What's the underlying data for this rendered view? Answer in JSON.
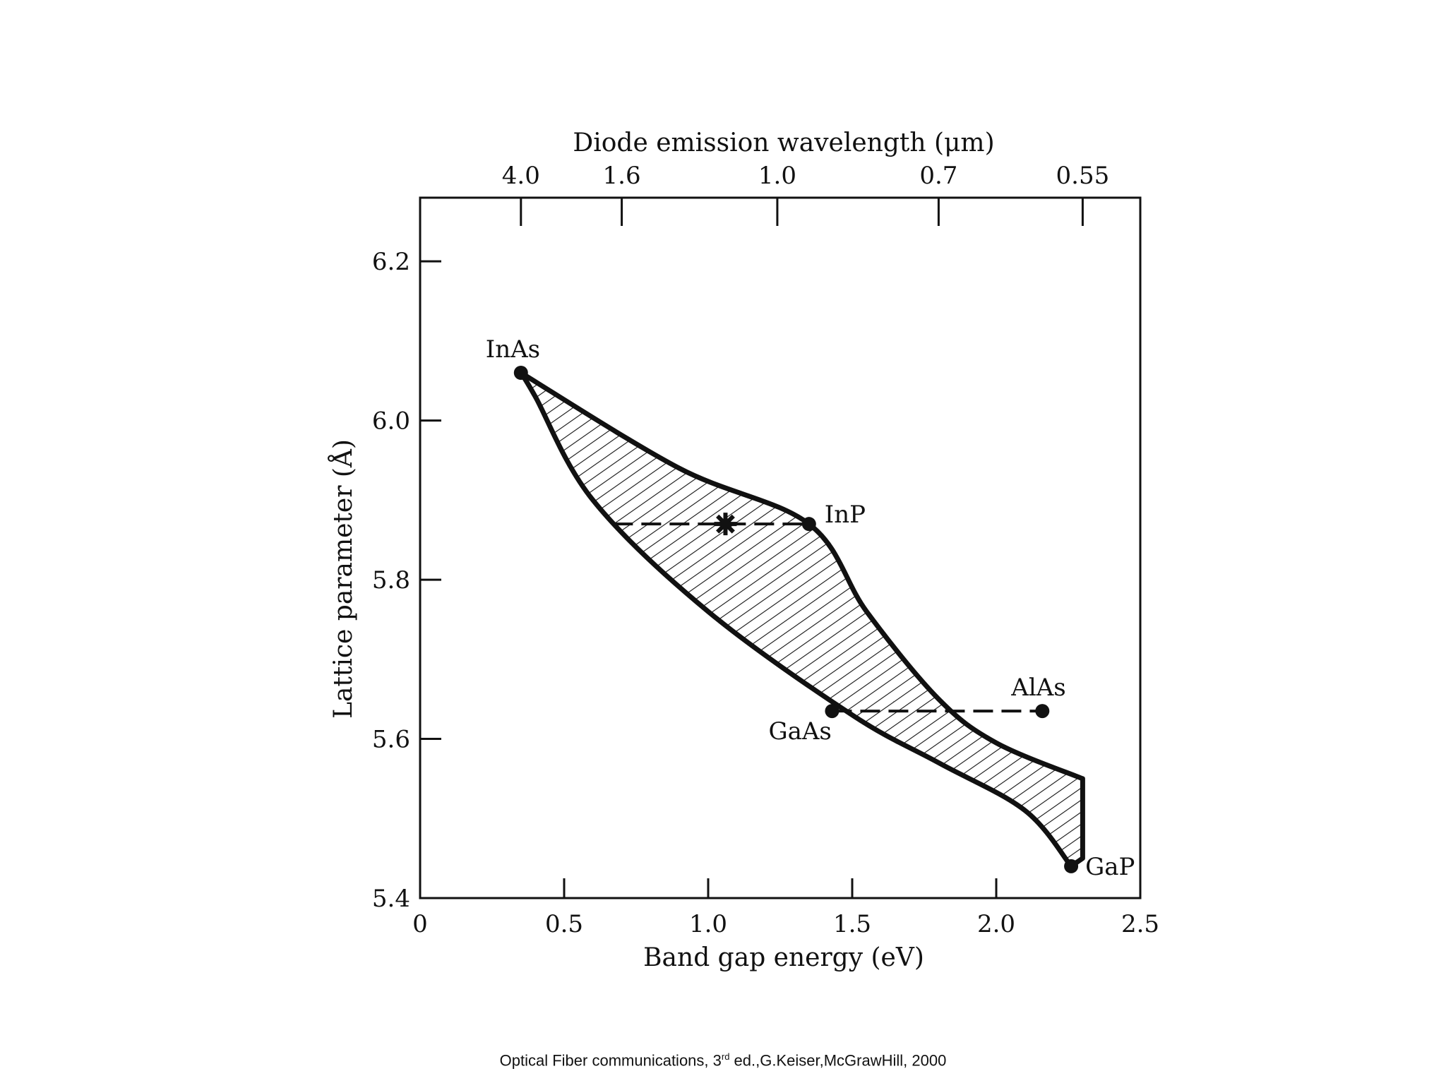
{
  "chart_data": {
    "type": "area",
    "top_axis": {
      "label": "Diode emission wavelength (μm)",
      "ticks": [
        {
          "label": "4.0",
          "energy": 0.35
        },
        {
          "label": "1.6",
          "energy": 0.7
        },
        {
          "label": "1.0",
          "energy": 1.24
        },
        {
          "label": "0.7",
          "energy": 1.8
        },
        {
          "label": "0.55",
          "energy": 2.3
        }
      ]
    },
    "xaxis": {
      "label": "Band gap energy (eV)",
      "range": [
        0,
        2.5
      ],
      "ticks": [
        {
          "value": 0,
          "label": "0"
        },
        {
          "value": 0.5,
          "label": "0.5"
        },
        {
          "value": 1.0,
          "label": "1.0"
        },
        {
          "value": 1.5,
          "label": "1.5"
        },
        {
          "value": 2.0,
          "label": "2.0"
        },
        {
          "value": 2.5,
          "label": "2.5"
        }
      ]
    },
    "yaxis": {
      "label": "Lattice parameter (Å)",
      "range": [
        5.4,
        6.28
      ],
      "ticks": [
        {
          "value": 5.4,
          "label": "5.4"
        },
        {
          "value": 5.6,
          "label": "5.6"
        },
        {
          "value": 5.8,
          "label": "5.8"
        },
        {
          "value": 6.0,
          "label": "6.0"
        },
        {
          "value": 6.2,
          "label": "6.2"
        }
      ]
    },
    "region": {
      "upper_boundary": [
        [
          0.35,
          6.06
        ],
        [
          0.9,
          5.94
        ],
        [
          1.35,
          5.87
        ],
        [
          1.55,
          5.76
        ],
        [
          1.8,
          5.65
        ],
        [
          2.0,
          5.595
        ],
        [
          2.3,
          5.55
        ]
      ],
      "lower_boundary": [
        [
          0.35,
          6.06
        ],
        [
          0.4,
          6.03
        ],
        [
          0.6,
          5.9
        ],
        [
          1.0,
          5.76
        ],
        [
          1.5,
          5.63
        ],
        [
          1.8,
          5.57
        ],
        [
          2.1,
          5.51
        ],
        [
          2.26,
          5.44
        ]
      ],
      "right_edge": [
        [
          2.3,
          5.55
        ],
        [
          2.3,
          5.45
        ],
        [
          2.26,
          5.44
        ]
      ]
    },
    "compounds": [
      {
        "name": "InAs",
        "x": 0.35,
        "y": 6.06
      },
      {
        "name": "InP",
        "x": 1.35,
        "y": 5.87
      },
      {
        "name": "GaAs",
        "x": 1.43,
        "y": 5.635
      },
      {
        "name": "AlAs",
        "x": 2.16,
        "y": 5.635
      },
      {
        "name": "GaP",
        "x": 2.26,
        "y": 5.44
      }
    ],
    "dashed_lines": [
      {
        "from": [
          0.67,
          5.87
        ],
        "to": [
          1.35,
          5.87
        ]
      },
      {
        "from": [
          1.43,
          5.635
        ],
        "to": [
          2.16,
          5.635
        ]
      }
    ],
    "star_marker": {
      "x": 1.06,
      "y": 5.87
    }
  },
  "citation": {
    "prefix": "Optical Fiber communications, 3",
    "superscript": "rd",
    "suffix": " ed.,G.Keiser,McGrawHill, 2000"
  }
}
